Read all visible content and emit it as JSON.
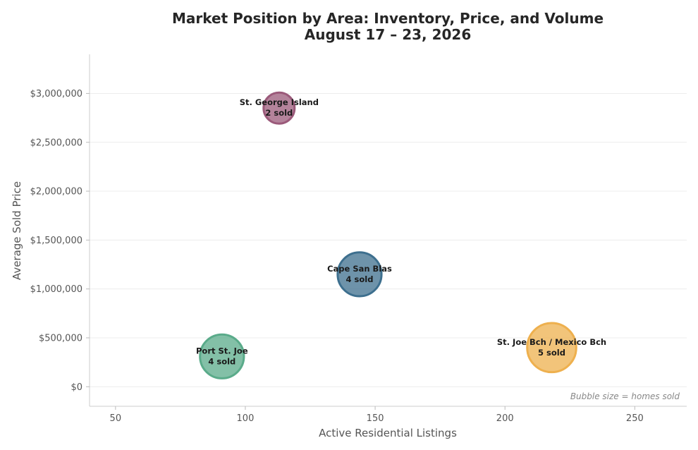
{
  "chart_data": {
    "type": "scatter",
    "title": "Market Position by Area: Inventory, Price, and Volume",
    "subtitle": "August 17 – 23, 2026",
    "xlabel": "Active Residential Listings",
    "ylabel": "Average Sold Price",
    "xlim": [
      40,
      270
    ],
    "ylim": [
      -200000,
      3400000
    ],
    "xticks": [
      50,
      100,
      150,
      200,
      250
    ],
    "xtick_labels": [
      "50",
      "100",
      "150",
      "200",
      "250"
    ],
    "yticks": [
      0,
      500000,
      1000000,
      1500000,
      2000000,
      2500000,
      3000000
    ],
    "ytick_labels": [
      "$0",
      "$500,000",
      "$1,000,000",
      "$1,500,000",
      "$2,000,000",
      "$2,500,000",
      "$3,000,000"
    ],
    "grid": "horizontal",
    "size_note": "Bubble size = homes sold",
    "points": [
      {
        "label": "St. George Island",
        "sold_label": "2 sold",
        "x": 113,
        "y": 2850000,
        "size": 2,
        "color": "#9b5a7a"
      },
      {
        "label": "Cape San Blas",
        "sold_label": "4 sold",
        "x": 144,
        "y": 1150000,
        "size": 4,
        "color": "#3d6f8e"
      },
      {
        "label": "Port St. Joe",
        "sold_label": "4 sold",
        "x": 91,
        "y": 310000,
        "size": 4,
        "color": "#5aab8a"
      },
      {
        "label": "St. Joe Bch / Mexico Bch",
        "sold_label": "5 sold",
        "x": 218,
        "y": 400000,
        "size": 5,
        "color": "#eeb04e"
      }
    ]
  }
}
